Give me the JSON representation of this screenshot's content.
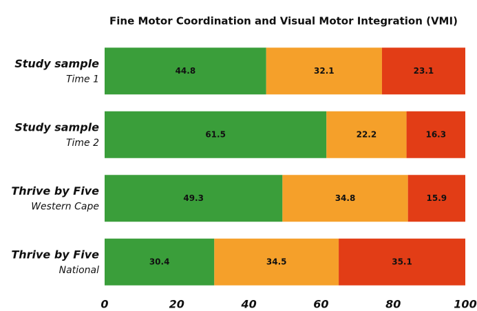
{
  "chart_data": {
    "type": "stacked_barh",
    "title": "Fine Motor Coordination and Visual Motor Integration (VMI)",
    "categories": [
      "Study sample",
      "Study sample",
      "Thrive by Five",
      "Thrive by Five"
    ],
    "category_subtitles": [
      "Time 1",
      "Time 2",
      "Western Cape",
      "National"
    ],
    "series": [
      {
        "color": "#3a9e3a",
        "values": [
          44.8,
          61.5,
          49.3,
          30.4
        ]
      },
      {
        "color": "#f5a02a",
        "values": [
          32.1,
          22.2,
          34.8,
          34.5
        ]
      },
      {
        "color": "#e23d16",
        "values": [
          23.1,
          16.3,
          15.9,
          35.1
        ]
      }
    ],
    "xlim": [
      0,
      100
    ],
    "xticks": [
      0,
      20,
      40,
      60,
      80,
      100
    ],
    "grid": false
  }
}
